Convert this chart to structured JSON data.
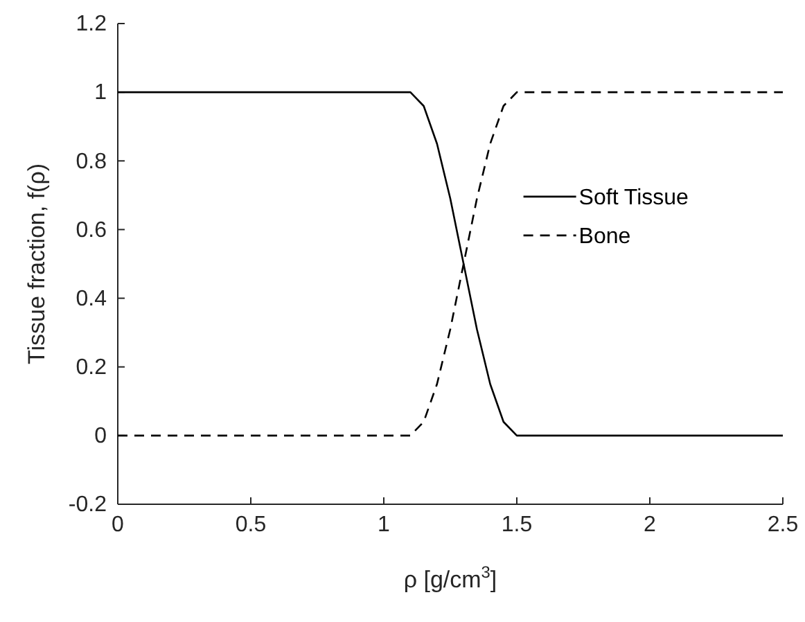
{
  "chart_data": {
    "type": "line",
    "xlabel": "ρ [g/cm$^{3}$]",
    "ylabel": "Tissue fraction, f(ρ)",
    "x": [
      0,
      1.1,
      1.15,
      1.2,
      1.25,
      1.3,
      1.35,
      1.4,
      1.45,
      1.5,
      2.5
    ],
    "series": [
      {
        "name": "Soft Tissue",
        "color": "#000000",
        "line_style": "solid",
        "values": [
          1,
          1,
          0.96,
          0.85,
          0.69,
          0.5,
          0.31,
          0.15,
          0.04,
          0,
          0
        ]
      },
      {
        "name": "Bone",
        "color": "#000000",
        "line_style": "dashed",
        "values": [
          0,
          0,
          0.04,
          0.15,
          0.31,
          0.5,
          0.69,
          0.85,
          0.96,
          1,
          1
        ]
      }
    ],
    "xlim": [
      0,
      2.5
    ],
    "xticks": [
      0,
      0.5,
      1,
      1.5,
      2,
      2.5
    ],
    "ylim": [
      -0.2,
      1.2
    ],
    "yticks": [
      -0.2,
      0,
      0.2,
      0.4,
      0.6,
      0.8,
      1,
      1.2
    ],
    "legend": "right",
    "marker": "none"
  }
}
